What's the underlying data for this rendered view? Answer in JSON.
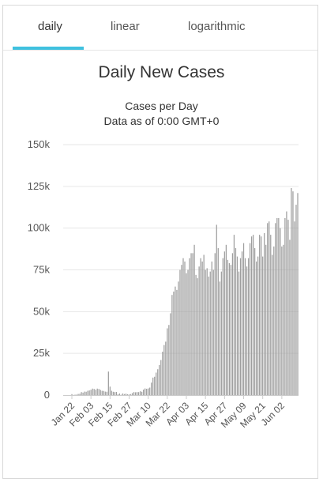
{
  "tabs": [
    {
      "label": "daily",
      "active": true
    },
    {
      "label": "linear",
      "active": false
    },
    {
      "label": "logarithmic",
      "active": false
    }
  ],
  "colors": {
    "accent": "#3fc1df",
    "bar": "#9e9e9e",
    "grid": "#e6e6e6"
  },
  "chart_data": {
    "type": "bar",
    "title": "Daily New Cases",
    "subtitle_lines": [
      "Cases per Day",
      "Data as of 0:00 GMT+0"
    ],
    "xlabel": "",
    "ylabel": "",
    "ylim": [
      0,
      150000
    ],
    "yticks": [
      0,
      25000,
      50000,
      75000,
      100000,
      125000,
      150000
    ],
    "ytick_labels": [
      "0",
      "25k",
      "50k",
      "75k",
      "100k",
      "125k",
      "150k"
    ],
    "xtick_labels": [
      "Jan 22",
      "Feb 03",
      "Feb 15",
      "Feb 27",
      "Mar 10",
      "Mar 22",
      "Apr 03",
      "Apr 15",
      "Apr 27",
      "May 09",
      "May 21",
      "Jun 02"
    ],
    "grid": true,
    "legend": "none",
    "start_date": "Jan 22",
    "values": [
      580,
      100,
      250,
      300,
      700,
      800,
      1800,
      1500,
      2100,
      2000,
      2600,
      2800,
      3200,
      3900,
      3700,
      3200,
      3900,
      3700,
      3100,
      2600,
      2500,
      2100,
      2000,
      14100,
      5100,
      2600,
      2000,
      1800,
      1900,
      500,
      1000,
      200,
      1000,
      600,
      900,
      500,
      400,
      600,
      1200,
      1800,
      1700,
      1800,
      1800,
      2300,
      2000,
      3300,
      4000,
      3800,
      4000,
      4500,
      7500,
      10500,
      11000,
      13500,
      15500,
      18000,
      21000,
      26000,
      30000,
      32000,
      40000,
      42000,
      49000,
      60000,
      62000,
      65000,
      63000,
      68000,
      75000,
      78000,
      82000,
      80000,
      73000,
      75000,
      82000,
      85000,
      85000,
      90000,
      72000,
      70000,
      77000,
      82000,
      80000,
      84000,
      75000,
      76000,
      71000,
      74000,
      80000,
      75000,
      85000,
      102000,
      88000,
      68000,
      74000,
      82000,
      86000,
      90000,
      81000,
      79000,
      78000,
      85000,
      96000,
      88000,
      83000,
      74000,
      82000,
      86000,
      91000,
      82000,
      77000,
      82000,
      91000,
      95000,
      96000,
      88000,
      80000,
      83000,
      96000,
      95000,
      83000,
      97000,
      90000,
      103000,
      104000,
      96000,
      84000,
      89000,
      103000,
      106000,
      106000,
      100000,
      89000,
      90000,
      106000,
      110000,
      105000,
      93000,
      124000,
      122000,
      104000,
      114000,
      121000
    ]
  }
}
